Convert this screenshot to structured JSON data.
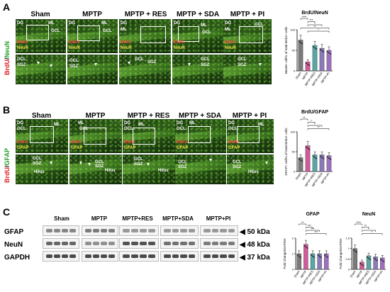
{
  "panels": {
    "A": {
      "letter": "A",
      "columns": [
        "Sham",
        "MPTP",
        "MPTP + RES",
        "MPTP + SDA",
        "MPTP + PI"
      ],
      "stain_left": [
        "BrdU",
        "/",
        "NeuN"
      ],
      "micro_labels": {
        "dg": "DG",
        "ml": "ML",
        "gcl": "GCL",
        "sgz": "SGZ",
        "brdu": "BrdU",
        "neun": "NeuN"
      },
      "chart_title": "BrdU/NeuN",
      "ylabel": "NeuN+ cell% of total BrdU+ cells",
      "sig": [
        "****",
        "***",
        "*",
        "**",
        "*"
      ]
    },
    "B": {
      "letter": "B",
      "columns": [
        "Sham",
        "MPTP",
        "MPTP + RES",
        "MPTP + SDA",
        "MPTP + PI"
      ],
      "stain_left": [
        "BrdU",
        "/",
        "GFAP"
      ],
      "micro_labels": {
        "dg": "DG",
        "ml": "ML",
        "gcl": "GCL",
        "sgz": "SGZ",
        "hilus": "Hilus",
        "brdu": "BrdU",
        "gfap": "GFAP"
      },
      "chart_title": "BrdU/GFAP",
      "ylabel": "GFAP+ cell% of total BrdU+ cells",
      "sig": [
        "**",
        "*",
        "*",
        "**"
      ]
    },
    "C": {
      "letter": "C",
      "lanes": [
        "Sham",
        "MPTP",
        "MPTP+RES",
        "MPTP+SDA",
        "MPTP+PI"
      ],
      "rows": [
        {
          "name": "GFAP",
          "kda": "◀ 50 kDa"
        },
        {
          "name": "NeuN",
          "kda": "◀ 48 kDa"
        },
        {
          "name": "GAPDH",
          "kda": "◀ 37 kDa"
        }
      ],
      "charts": [
        {
          "title": "GFAP",
          "ylabel": "Fold change/GAPDH",
          "sig": [
            "**",
            "***",
            "***",
            "***"
          ]
        },
        {
          "title": "NeuN",
          "ylabel": "Fold change/GAPDH",
          "sig": [
            "****",
            "**",
            "*",
            "*"
          ]
        }
      ]
    }
  },
  "chart_data": [
    {
      "type": "bar",
      "panel": "A",
      "title": "BrdU/NeuN",
      "ylabel": "NeuN+ cell% of total BrdU+ cells",
      "categories": [
        "Sham",
        "MPTP",
        "MPTP+RES",
        "MPTP+SDA",
        "MPTP+PI"
      ],
      "values": [
        75,
        22,
        62,
        55,
        50
      ],
      "colors": [
        "#7a7a7a",
        "#d05a9a",
        "#5aa6a6",
        "#8a7ab8",
        "#a070c0"
      ]
    },
    {
      "type": "bar",
      "panel": "B",
      "title": "BrdU/GFAP",
      "ylabel": "GFAP+ cell% of total BrdU+ cells",
      "categories": [
        "Sham",
        "MPTP",
        "MPTP+RES",
        "MPTP+SDA",
        "MPTP+PI"
      ],
      "values": [
        35,
        65,
        42,
        42,
        40
      ],
      "colors": [
        "#7a7a7a",
        "#d05a9a",
        "#5aa6a6",
        "#8a7ab8",
        "#a070c0"
      ]
    },
    {
      "type": "bar",
      "panel": "C",
      "title": "GFAP",
      "ylabel": "Fold change/GAPDH",
      "categories": [
        "Sham",
        "MPTP",
        "MPTP+RES",
        "MPTP+SDA",
        "MPTP+PI"
      ],
      "values": [
        1.0,
        1.6,
        1.0,
        1.0,
        1.0
      ],
      "colors": [
        "#7a7a7a",
        "#d05a9a",
        "#5aa6a6",
        "#8a7ab8",
        "#a070c0"
      ]
    },
    {
      "type": "bar",
      "panel": "C",
      "title": "NeuN",
      "ylabel": "Fold change/GAPDH",
      "categories": [
        "Sham",
        "MPTP",
        "MPTP+RES",
        "MPTP+SDA",
        "MPTP+PI"
      ],
      "values": [
        1.0,
        0.35,
        0.65,
        0.6,
        0.55
      ],
      "colors": [
        "#7a7a7a",
        "#d05a9a",
        "#5aa6a6",
        "#8a7ab8",
        "#a070c0"
      ]
    }
  ]
}
